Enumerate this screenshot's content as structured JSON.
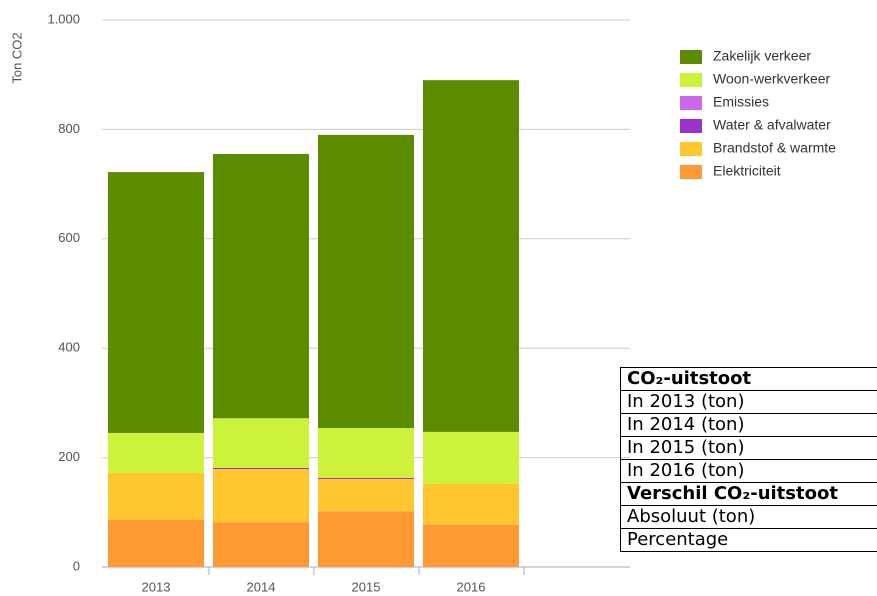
{
  "chart_data": {
    "type": "bar",
    "stacked": true,
    "y_label": "Ton CO2",
    "categories": [
      "2013",
      "2014",
      "2015",
      "2016"
    ],
    "series": [
      {
        "name": "Zakelijk verkeer",
        "color": "#5b8c00",
        "values": [
          477,
          483,
          536,
          643
        ]
      },
      {
        "name": "Woon-werkverkeer",
        "color": "#ccf23b",
        "values": [
          73,
          91,
          91,
          95
        ]
      },
      {
        "name": "Emissies",
        "color": "#cc66ee",
        "values": [
          0,
          0,
          0,
          0
        ]
      },
      {
        "name": "Water & afvalwater",
        "color": "#9933cc",
        "values": [
          0,
          2,
          2,
          0
        ]
      },
      {
        "name": "Brandstof & warmte",
        "color": "#ffc62f",
        "values": [
          86,
          97,
          59,
          75
        ]
      },
      {
        "name": "Elektriciteit",
        "color": "#ff9933",
        "values": [
          86,
          82,
          102,
          77
        ]
      }
    ],
    "ylim": [
      0,
      1000
    ],
    "yticks": [
      0,
      200,
      400,
      600,
      800,
      {
        "value": 1000,
        "label": "1.000"
      }
    ],
    "grid": true,
    "legend": "top-right"
  },
  "table": {
    "rows": [
      {
        "text": "CO₂-uitstoot",
        "bold": true
      },
      {
        "text": "In 2013 (ton)",
        "bold": false
      },
      {
        "text": "In 2014 (ton)",
        "bold": false
      },
      {
        "text": "In 2015 (ton)",
        "bold": false
      },
      {
        "text": "In 2016 (ton)",
        "bold": false
      },
      {
        "text": "Verschil CO₂-uitstoot",
        "bold": true
      },
      {
        "text": "Absoluut (ton)",
        "bold": false
      },
      {
        "text": "Percentage",
        "bold": false
      }
    ]
  }
}
